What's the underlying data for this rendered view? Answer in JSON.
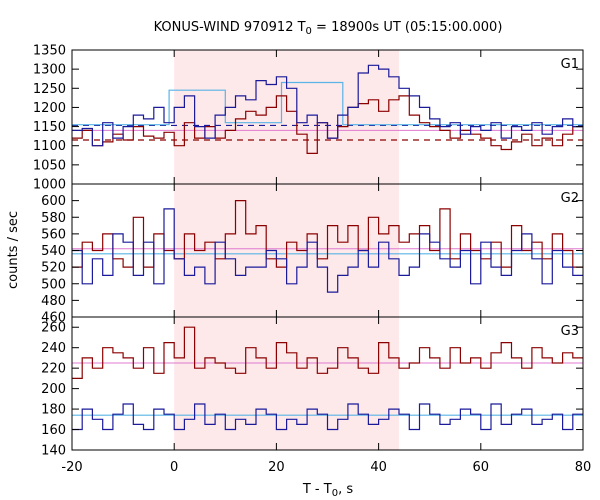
{
  "chart_data": {
    "type": "line",
    "title": "KONUS-WIND 970912 T",
    "title_sub": "0",
    "title_rest": " = 18900s UT (05:15:00.000)",
    "xlabel": "T - T",
    "xlabel_sub": "0",
    "xlabel_rest": ", s",
    "ylabel": "counts / sec",
    "xlim": [
      -20,
      80
    ],
    "x_ticks": [
      -20,
      0,
      20,
      40,
      60,
      80
    ],
    "bin_width": 2,
    "bin_start": -20,
    "shaded_interval": [
      0,
      44
    ],
    "colors": {
      "red_series": "#8b0000",
      "blue_series": "#1a1a9a",
      "red_model": "#e07ad0",
      "blue_model": "#5ab4e6",
      "shade": "#fde8ea"
    },
    "panels": [
      {
        "label": "G1",
        "ylim": [
          1000,
          1350
        ],
        "y_ticks": [
          1000,
          1050,
          1100,
          1150,
          1200,
          1250,
          1300,
          1350
        ],
        "red_background": 1115,
        "blue_background": 1153,
        "red_level": 1140,
        "blue_level": 1155,
        "red_values": [
          1120,
          1140,
          1100,
          1110,
          1130,
          1115,
          1150,
          1125,
          1120,
          1135,
          1100,
          1160,
          1120,
          1150,
          1120,
          1140,
          1170,
          1190,
          1180,
          1200,
          1230,
          1190,
          1130,
          1080,
          1160,
          1120,
          1150,
          1200,
          1210,
          1220,
          1190,
          1220,
          1230,
          1180,
          1160,
          1150,
          1140,
          1120,
          1140,
          1130,
          1120,
          1100,
          1090,
          1110,
          1130,
          1100,
          1120,
          1100,
          1130,
          1150
        ],
        "blue_values": [
          1140,
          1145,
          1100,
          1160,
          1120,
          1150,
          1180,
          1170,
          1200,
          1160,
          1200,
          1230,
          1150,
          1120,
          1180,
          1200,
          1230,
          1220,
          1270,
          1260,
          1280,
          1250,
          1160,
          1180,
          1160,
          1120,
          1180,
          1200,
          1290,
          1310,
          1300,
          1280,
          1250,
          1230,
          1200,
          1170,
          1150,
          1160,
          1130,
          1150,
          1140,
          1160,
          1120,
          1150,
          1140,
          1160,
          1130,
          1150,
          1170,
          1150
        ],
        "blue_model_steps": [
          [
            -20,
            1155
          ],
          [
            -1,
            1155
          ],
          [
            -1,
            1245
          ],
          [
            10,
            1245
          ],
          [
            10,
            1160
          ],
          [
            21,
            1160
          ],
          [
            21,
            1265
          ],
          [
            33,
            1265
          ],
          [
            33,
            1155
          ],
          [
            80,
            1155
          ]
        ],
        "red_model_steps": [
          [
            -20,
            1140
          ],
          [
            80,
            1140
          ]
        ]
      },
      {
        "label": "G2",
        "ylim": [
          460,
          620
        ],
        "y_ticks": [
          460,
          480,
          500,
          520,
          540,
          560,
          580,
          600
        ],
        "red_background": 542,
        "blue_background": 536,
        "red_values": [
          520,
          550,
          540,
          560,
          530,
          520,
          580,
          520,
          560,
          540,
          530,
          560,
          540,
          550,
          530,
          560,
          600,
          560,
          570,
          530,
          520,
          550,
          540,
          560,
          530,
          570,
          550,
          570,
          540,
          580,
          560,
          570,
          550,
          560,
          570,
          540,
          590,
          530,
          560,
          540,
          530,
          550,
          520,
          570,
          540,
          550,
          530,
          560,
          540,
          520
        ],
        "blue_values": [
          540,
          500,
          530,
          510,
          560,
          550,
          510,
          550,
          500,
          590,
          530,
          510,
          520,
          500,
          550,
          530,
          510,
          520,
          520,
          540,
          530,
          500,
          520,
          550,
          520,
          490,
          510,
          520,
          540,
          520,
          550,
          530,
          510,
          520,
          560,
          550,
          530,
          520,
          540,
          500,
          550,
          520,
          510,
          540,
          560,
          530,
          500,
          540,
          520,
          510
        ],
        "red_model_steps": [
          [
            -20,
            542
          ],
          [
            80,
            542
          ]
        ],
        "blue_model_steps": [
          [
            -20,
            536
          ],
          [
            80,
            536
          ]
        ]
      },
      {
        "label": "G3",
        "ylim": [
          140,
          270
        ],
        "y_ticks": [
          140,
          160,
          180,
          200,
          220,
          240,
          260
        ],
        "red_background": 225,
        "blue_background": 174,
        "red_values": [
          210,
          230,
          220,
          240,
          235,
          230,
          220,
          240,
          215,
          245,
          230,
          260,
          220,
          230,
          225,
          220,
          215,
          240,
          230,
          220,
          245,
          235,
          220,
          230,
          215,
          220,
          240,
          230,
          220,
          215,
          245,
          230,
          220,
          225,
          240,
          230,
          220,
          240,
          225,
          230,
          220,
          235,
          245,
          230,
          220,
          240,
          230,
          225,
          235,
          230
        ],
        "blue_values": [
          160,
          180,
          170,
          160,
          175,
          185,
          165,
          160,
          180,
          175,
          160,
          170,
          185,
          165,
          175,
          160,
          170,
          165,
          180,
          175,
          160,
          170,
          165,
          180,
          175,
          160,
          170,
          185,
          175,
          165,
          170,
          180,
          175,
          160,
          185,
          175,
          165,
          170,
          180,
          175,
          160,
          185,
          165,
          175,
          180,
          165,
          170,
          175,
          160,
          175
        ],
        "red_model_steps": [
          [
            -20,
            225
          ],
          [
            80,
            225
          ]
        ],
        "blue_model_steps": [
          [
            -20,
            174
          ],
          [
            80,
            174
          ]
        ]
      }
    ]
  }
}
